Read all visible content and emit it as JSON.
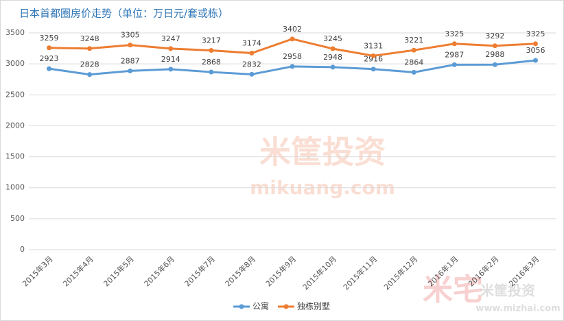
{
  "chart_data": {
    "type": "line",
    "title": "日本首都圈房价走势（单位：万日元/套或栋）",
    "categories": [
      "2015年3月",
      "2015年4月",
      "2015年5月",
      "2015年6月",
      "2015年7月",
      "2015年8月",
      "2015年9月",
      "2015年10月",
      "2015年11月",
      "2015年12月",
      "2016年1月",
      "2016年2月",
      "2016年3月"
    ],
    "series": [
      {
        "name": "公寓",
        "color": "#5b9bd5",
        "values": [
          2923,
          2828,
          2887,
          2914,
          2868,
          2832,
          2958,
          2948,
          2916,
          2864,
          2987,
          2988,
          3056
        ]
      },
      {
        "name": "独栋别墅",
        "color": "#ed7d31",
        "values": [
          3259,
          3248,
          3305,
          3247,
          3217,
          3174,
          3402,
          3245,
          3131,
          3221,
          3325,
          3292,
          3325
        ]
      }
    ],
    "ylim": [
      0,
      3500
    ],
    "yticks": [
      0,
      500,
      1000,
      1500,
      2000,
      2500,
      3000,
      3500
    ],
    "grid": true,
    "legend": "bottom",
    "annotations": [
      "米筐投资",
      "mikuang.com",
      "米宅",
      "米筐投资",
      "www.mizhai.com"
    ]
  }
}
